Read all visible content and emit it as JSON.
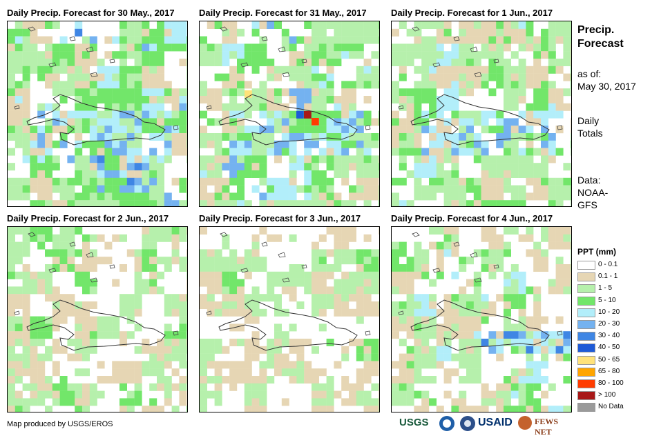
{
  "panels": [
    {
      "title": "Daily Precip. Forecast for 30 May., 2017",
      "seed": 11,
      "profile": "wet1"
    },
    {
      "title": "Daily Precip. Forecast for 31 May., 2017",
      "seed": 23,
      "profile": "wet2"
    },
    {
      "title": "Daily Precip. Forecast for 1 Jun., 2017",
      "seed": 37,
      "profile": "mid"
    },
    {
      "title": "Daily Precip. Forecast for 2 Jun., 2017",
      "seed": 41,
      "profile": "light"
    },
    {
      "title": "Daily Precip. Forecast for 3 Jun., 2017",
      "seed": 53,
      "profile": "dry"
    },
    {
      "title": "Daily Precip. Forecast for 4 Jun., 2017",
      "seed": 67,
      "profile": "south"
    }
  ],
  "side": {
    "title_line1": "Precip.",
    "title_line2": "Forecast",
    "asof_label": "as of:",
    "asof_date": "May 30, 2017",
    "totals_line1": "Daily",
    "totals_line2": "Totals",
    "data_label": "Data:",
    "data_src1": "NOAA-",
    "data_src2": "GFS"
  },
  "legend": {
    "title": "PPT (mm)",
    "items": [
      {
        "label": "0 - 0.1",
        "color": "#ffffff"
      },
      {
        "label": "0.1 - 1",
        "color": "#e6d6b4"
      },
      {
        "label": "1 - 5",
        "color": "#b6f0ac"
      },
      {
        "label": "5 - 10",
        "color": "#72e66a"
      },
      {
        "label": "10 - 20",
        "color": "#b2eefa"
      },
      {
        "label": "20 - 30",
        "color": "#74b2f0"
      },
      {
        "label": "30 - 40",
        "color": "#3f86e4"
      },
      {
        "label": "40 - 50",
        "color": "#1e5ad6"
      },
      {
        "label": "50 - 65",
        "color": "#ffe27a"
      },
      {
        "label": "65 - 80",
        "color": "#ffa500"
      },
      {
        "label": "80 - 100",
        "color": "#ff3c00"
      },
      {
        "label": "> 100",
        "color": "#a81818"
      },
      {
        "label": "No Data",
        "color": "#9a9a9a"
      }
    ]
  },
  "footer": {
    "credit": "Map produced by USGS/EROS"
  },
  "logos": {
    "usgs": "USGS",
    "usaid": "USAID",
    "fews": "FEWS NET"
  }
}
